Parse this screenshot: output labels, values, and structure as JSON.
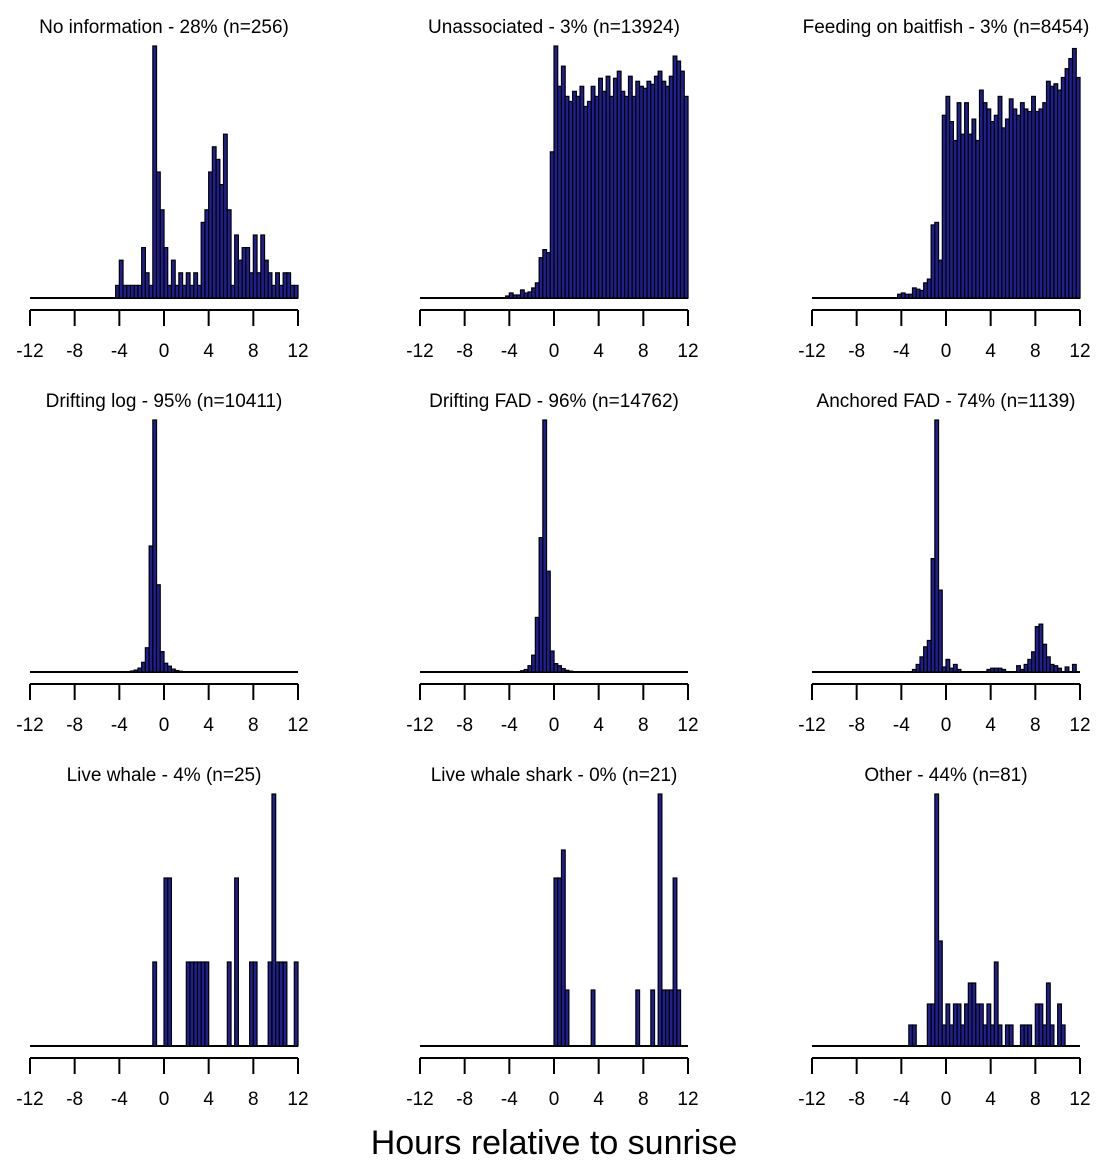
{
  "figure": {
    "xlabel": "Hours relative to sunrise"
  },
  "colors": {
    "bar_fill": "#1f1f8f",
    "bar_stroke": "#000000",
    "axis": "#000000"
  },
  "chart_data": [
    {
      "type": "bar",
      "title": "No information - 28% (n=256)",
      "xlim": [
        -12,
        12
      ],
      "xticks": [
        "-12",
        "-8",
        "-4",
        "0",
        "4",
        "8",
        "12"
      ],
      "bin_width": 0.333,
      "x": [
        -4.33,
        -4.0,
        -3.67,
        -3.33,
        -3.0,
        -2.67,
        -2.33,
        -2.0,
        -1.67,
        -1.33,
        -1.0,
        -0.67,
        -0.33,
        0.0,
        0.33,
        0.67,
        1.0,
        1.33,
        1.67,
        2.0,
        2.33,
        2.67,
        3.0,
        3.33,
        3.67,
        4.0,
        4.33,
        4.67,
        5.0,
        5.33,
        5.67,
        6.0,
        6.33,
        6.67,
        7.0,
        7.33,
        7.67,
        8.0,
        8.33,
        8.67,
        9.0,
        9.33,
        9.67,
        10.0,
        10.33,
        10.67,
        11.0,
        11.33,
        11.67
      ],
      "values": [
        1,
        3,
        1,
        1,
        1,
        1,
        1,
        4,
        2,
        1,
        20,
        10,
        7,
        4,
        1,
        3,
        1,
        2,
        1,
        2,
        1,
        2,
        1,
        6,
        7,
        10,
        12,
        11,
        9,
        13,
        7,
        1,
        5,
        3,
        4,
        4,
        2,
        5,
        2,
        5,
        3,
        2,
        1,
        2,
        1,
        2,
        2,
        1,
        1
      ],
      "ymax": 20
    },
    {
      "type": "bar",
      "title": "Unassociated - 3% (n=13924)",
      "xlim": [
        -12,
        12
      ],
      "xticks": [
        "-12",
        "-8",
        "-4",
        "0",
        "4",
        "8",
        "12"
      ],
      "bin_width": 0.333,
      "x": [
        -4.33,
        -4.0,
        -3.67,
        -3.33,
        -3.0,
        -2.67,
        -2.33,
        -2.0,
        -1.67,
        -1.33,
        -1.0,
        -0.67,
        -0.33,
        0.0,
        0.33,
        0.67,
        1.0,
        1.33,
        1.67,
        2.0,
        2.33,
        2.67,
        3.0,
        3.33,
        3.67,
        4.0,
        4.33,
        4.67,
        5.0,
        5.33,
        5.67,
        6.0,
        6.33,
        6.67,
        7.0,
        7.33,
        7.67,
        8.0,
        8.33,
        8.67,
        9.0,
        9.33,
        9.67,
        10.0,
        10.33,
        10.67,
        11.0,
        11.33,
        11.67
      ],
      "values": [
        2,
        5,
        3,
        3,
        8,
        5,
        6,
        10,
        15,
        40,
        48,
        45,
        145,
        250,
        210,
        230,
        200,
        195,
        205,
        200,
        210,
        190,
        195,
        210,
        200,
        218,
        205,
        220,
        200,
        218,
        225,
        205,
        200,
        220,
        200,
        215,
        210,
        208,
        215,
        212,
        220,
        225,
        215,
        210,
        220,
        240,
        235,
        225,
        200
      ],
      "ymax": 250
    },
    {
      "type": "bar",
      "title": "Feeding on baitfish - 3% (n=8454)",
      "xlim": [
        -12,
        12
      ],
      "xticks": [
        "-12",
        "-8",
        "-4",
        "0",
        "4",
        "8",
        "12"
      ],
      "bin_width": 0.333,
      "x": [
        -4.33,
        -4.0,
        -3.67,
        -3.33,
        -3.0,
        -2.67,
        -2.33,
        -2.0,
        -1.67,
        -1.33,
        -1.0,
        -0.67,
        -0.33,
        0.0,
        0.33,
        0.67,
        1.0,
        1.33,
        1.67,
        2.0,
        2.33,
        2.67,
        3.0,
        3.33,
        3.67,
        4.0,
        4.33,
        4.67,
        5.0,
        5.33,
        5.67,
        6.0,
        6.33,
        6.67,
        7.0,
        7.33,
        7.67,
        8.0,
        8.33,
        8.67,
        9.0,
        9.33,
        9.67,
        10.0,
        10.33,
        10.67,
        11.0,
        11.33,
        11.67
      ],
      "values": [
        3,
        4,
        3,
        3,
        8,
        7,
        6,
        12,
        15,
        58,
        60,
        30,
        145,
        160,
        140,
        125,
        155,
        130,
        155,
        130,
        142,
        125,
        165,
        155,
        150,
        140,
        145,
        160,
        135,
        142,
        158,
        150,
        145,
        155,
        150,
        148,
        160,
        148,
        150,
        155,
        172,
        168,
        170,
        165,
        175,
        182,
        190,
        198,
        175
      ],
      "ymax": 200
    },
    {
      "type": "bar",
      "title": "Drifting log - 95% (n=10411)",
      "xlim": [
        -12,
        12
      ],
      "xticks": [
        "-12",
        "-8",
        "-4",
        "0",
        "4",
        "8",
        "12"
      ],
      "bin_width": 0.333,
      "x": [
        -3.0,
        -2.67,
        -2.33,
        -2.0,
        -1.67,
        -1.33,
        -1.0,
        -0.67,
        -0.33,
        0.0,
        0.33,
        0.67,
        1.0,
        1.33
      ],
      "values": [
        20,
        40,
        80,
        200,
        500,
        2600,
        5200,
        1800,
        420,
        180,
        120,
        60,
        30,
        15
      ],
      "ymax": 5200
    },
    {
      "type": "bar",
      "title": "Drifting FAD - 96% (n=14762)",
      "xlim": [
        -12,
        12
      ],
      "xticks": [
        "-12",
        "-8",
        "-4",
        "0",
        "4",
        "8",
        "12"
      ],
      "bin_width": 0.333,
      "x": [
        -3.0,
        -2.67,
        -2.33,
        -2.0,
        -1.67,
        -1.33,
        -1.0,
        -0.67,
        -0.33,
        0.0,
        0.33,
        0.67,
        1.0,
        1.33
      ],
      "values": [
        30,
        60,
        150,
        400,
        1300,
        3200,
        6000,
        2400,
        500,
        200,
        150,
        80,
        40,
        20
      ],
      "ymax": 6000
    },
    {
      "type": "bar",
      "title": "Anchored FAD - 74% (n=1139)",
      "xlim": [
        -12,
        12
      ],
      "xticks": [
        "-12",
        "-8",
        "-4",
        "0",
        "4",
        "8",
        "12"
      ],
      "bin_width": 0.333,
      "x": [
        -3.0,
        -2.67,
        -2.33,
        -2.0,
        -1.67,
        -1.33,
        -1.0,
        -0.67,
        -0.33,
        0.0,
        0.33,
        0.67,
        1.0,
        3.67,
        4.0,
        4.33,
        4.67,
        5.0,
        6.33,
        6.67,
        7.0,
        7.33,
        7.67,
        8.0,
        8.33,
        8.67,
        9.0,
        9.33,
        9.67,
        10.0,
        10.67,
        11.33
      ],
      "values": [
        2,
        6,
        12,
        20,
        25,
        90,
        200,
        65,
        4,
        10,
        3,
        6,
        2,
        2,
        3,
        3,
        3,
        2,
        5,
        2,
        6,
        10,
        16,
        36,
        38,
        22,
        12,
        6,
        5,
        3,
        4,
        6
      ],
      "ymax": 200
    },
    {
      "type": "bar",
      "title": "Live whale - 4% (n=25)",
      "xlim": [
        -12,
        12
      ],
      "xticks": [
        "-12",
        "-8",
        "-4",
        "0",
        "4",
        "8",
        "12"
      ],
      "bin_width": 0.333,
      "x": [
        -1.0,
        0.0,
        0.33,
        2.0,
        2.33,
        2.67,
        3.0,
        3.33,
        3.67,
        5.67,
        6.33,
        7.67,
        8.0,
        9.33,
        9.67,
        10.0,
        10.33,
        10.67,
        11.67
      ],
      "values": [
        1,
        2,
        2,
        1,
        1,
        1,
        1,
        1,
        1,
        1,
        2,
        1,
        1,
        1,
        3,
        1,
        1,
        1,
        1
      ],
      "ymax": 3
    },
    {
      "type": "bar",
      "title": "Live whale shark - 0% (n=21)",
      "xlim": [
        -12,
        12
      ],
      "xticks": [
        "-12",
        "-8",
        "-4",
        "0",
        "4",
        "8",
        "12"
      ],
      "bin_width": 0.333,
      "x": [
        0.0,
        0.33,
        0.67,
        1.0,
        3.33,
        7.33,
        8.67,
        9.33,
        9.67,
        10.0,
        10.33,
        10.67,
        11.0
      ],
      "values": [
        3,
        3,
        3.5,
        1,
        1,
        1,
        1,
        4.5,
        1,
        1,
        1,
        3,
        1
      ],
      "ymax": 4.5
    },
    {
      "type": "bar",
      "title": "Other - 44% (n=81)",
      "xlim": [
        -12,
        12
      ],
      "xticks": [
        "-12",
        "-8",
        "-4",
        "0",
        "4",
        "8",
        "12"
      ],
      "bin_width": 0.333,
      "x": [
        -3.33,
        -3.0,
        -1.67,
        -1.33,
        -1.0,
        -0.67,
        -0.33,
        0.0,
        0.33,
        0.67,
        1.0,
        1.33,
        1.67,
        2.0,
        2.33,
        2.67,
        3.0,
        3.33,
        3.67,
        4.0,
        4.33,
        4.67,
        5.33,
        5.67,
        6.67,
        7.0,
        7.33,
        8.0,
        8.33,
        8.67,
        9.0,
        9.33,
        10.0,
        10.33
      ],
      "values": [
        1,
        1,
        2,
        2,
        12,
        5,
        1,
        2,
        1,
        2,
        2,
        1,
        2,
        3,
        3,
        2,
        2,
        1,
        2,
        1,
        4,
        1,
        1,
        1,
        1,
        1,
        1,
        2,
        2,
        1,
        3,
        1,
        2,
        1
      ],
      "ymax": 12
    }
  ]
}
